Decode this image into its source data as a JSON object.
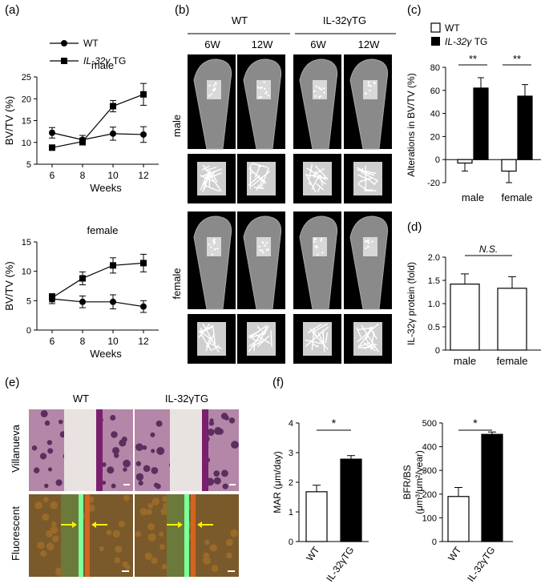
{
  "panels": {
    "a": {
      "label": "(a)"
    },
    "b": {
      "label": "(b)"
    },
    "c": {
      "label": "(c)"
    },
    "d": {
      "label": "(d)"
    },
    "e": {
      "label": "(e)"
    },
    "f": {
      "label": "(f)"
    }
  },
  "legend_a": {
    "wt": "WT",
    "tg_italic": "IL-32γ",
    "tg_suffix": "TG"
  },
  "legend_c": {
    "wt": "WT",
    "tg_italic": "IL-32γ",
    "tg_suffix": "TG"
  },
  "panel_b": {
    "group_wt": "WT",
    "group_tg": "IL-32γTG",
    "col_labels": [
      "6W",
      "12W",
      "6W",
      "12W"
    ],
    "row_male": "male",
    "row_female": "female"
  },
  "panel_e": {
    "col_wt": "WT",
    "col_tg": "IL-32γTG",
    "row_villanueva": "Villanueva",
    "row_fluorescent": "Fluorescent"
  },
  "chart_data": [
    {
      "id": "a-male",
      "type": "line",
      "title": "male",
      "xlabel": "Weeks",
      "ylabel": "BV/TV (%)",
      "x": [
        6,
        8,
        10,
        12
      ],
      "xlim": [
        5,
        13
      ],
      "ylim": [
        5,
        25
      ],
      "yticks": [
        5,
        10,
        15,
        20,
        25
      ],
      "series": [
        {
          "name": "WT",
          "marker": "circle",
          "values": [
            12.2,
            10.6,
            12.0,
            11.8
          ],
          "err": [
            1.2,
            1.0,
            1.5,
            1.8
          ]
        },
        {
          "name": "IL-32γ TG",
          "marker": "square",
          "values": [
            8.8,
            10.2,
            18.3,
            21.0
          ],
          "err": [
            0.3,
            0.8,
            1.3,
            2.5
          ]
        }
      ]
    },
    {
      "id": "a-female",
      "type": "line",
      "title": "female",
      "xlabel": "Weeks",
      "ylabel": "BV/TV (%)",
      "x": [
        6,
        8,
        10,
        12
      ],
      "xlim": [
        5,
        13
      ],
      "ylim": [
        0,
        15
      ],
      "yticks": [
        0,
        5,
        10,
        15
      ],
      "series": [
        {
          "name": "WT",
          "marker": "circle",
          "values": [
            5.3,
            4.8,
            4.8,
            4.0
          ],
          "err": [
            0.8,
            1.0,
            1.2,
            1.0
          ]
        },
        {
          "name": "IL-32γ TG",
          "marker": "square",
          "values": [
            5.5,
            8.8,
            11.0,
            11.4
          ],
          "err": [
            0.7,
            1.1,
            1.3,
            1.5
          ]
        }
      ]
    },
    {
      "id": "c",
      "type": "bar",
      "ylabel": "Alterations in BV/TV (%)",
      "categories": [
        "male",
        "female"
      ],
      "ylim": [
        -20,
        80
      ],
      "yticks": [
        -20,
        0,
        20,
        40,
        60,
        80
      ],
      "series": [
        {
          "name": "WT",
          "fill": "#ffffff",
          "values": [
            -3,
            -10
          ],
          "err": [
            7,
            10
          ]
        },
        {
          "name": "IL-32γ TG",
          "fill": "#000000",
          "values": [
            62,
            55
          ],
          "err": [
            9,
            10
          ]
        }
      ],
      "annotations": [
        "**",
        "**"
      ]
    },
    {
      "id": "d",
      "type": "bar",
      "ylabel": "IL-32γ protein (fold)",
      "categories": [
        "male",
        "female"
      ],
      "ylim": [
        0,
        2.0
      ],
      "yticks": [
        0,
        0.5,
        1.0,
        1.5,
        2.0
      ],
      "ytick_labels": [
        "0",
        "0.5",
        "1.0",
        "1.5",
        "2.0"
      ],
      "values": [
        1.42,
        1.33
      ],
      "err": [
        0.22,
        0.25
      ],
      "annotation": "N.S."
    },
    {
      "id": "f-mar",
      "type": "bar",
      "ylabel": "MAR (μm/day)",
      "categories": [
        "WT",
        "IL-32γTG"
      ],
      "ylim": [
        0,
        4
      ],
      "yticks": [
        0,
        1,
        2,
        3,
        4
      ],
      "values": [
        1.68,
        2.78
      ],
      "err": [
        0.22,
        0.12
      ],
      "fills": [
        "#ffffff",
        "#000000"
      ],
      "annotation": "*"
    },
    {
      "id": "f-bfr",
      "type": "bar",
      "ylabel_lines": [
        "BFR/BS",
        "(μm³/μm²/year)"
      ],
      "categories": [
        "WT",
        "IL-32γTG"
      ],
      "ylim": [
        0,
        500
      ],
      "yticks": [
        0,
        100,
        200,
        300,
        400,
        500
      ],
      "values": [
        190,
        452
      ],
      "err": [
        38,
        10
      ],
      "fills": [
        "#ffffff",
        "#000000"
      ],
      "annotation": "*"
    }
  ]
}
